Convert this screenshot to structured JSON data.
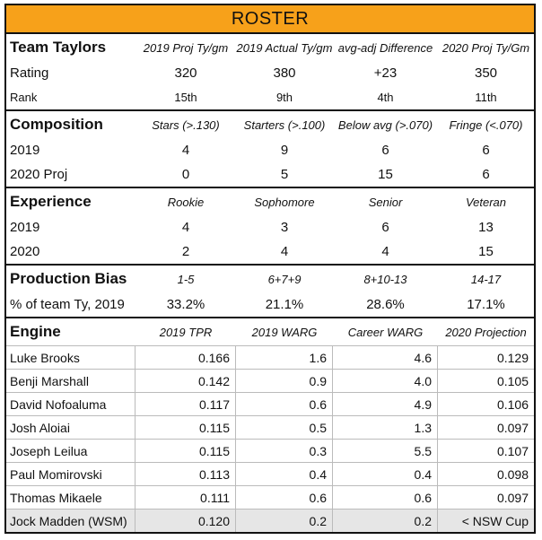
{
  "header": {
    "title": "ROSTER"
  },
  "sections": [
    {
      "title": "Team Taylors",
      "columns": [
        "2019 Proj Ty/gm",
        "2019 Actual Ty/gm",
        "avg-adj Difference",
        "2020 Proj Ty/Gm"
      ],
      "rows": [
        {
          "label": "Rating",
          "cells": [
            "320",
            "380",
            "+23",
            "350"
          ]
        },
        {
          "label": "Rank",
          "cells": [
            "15th",
            "9th",
            "4th",
            "11th"
          ]
        }
      ]
    },
    {
      "title": "Composition",
      "columns": [
        "Stars (>.130)",
        "Starters (>.100)",
        "Below avg (>.070)",
        "Fringe (<.070)"
      ],
      "rows": [
        {
          "label": "2019",
          "cells": [
            "4",
            "9",
            "6",
            "6"
          ]
        },
        {
          "label": "2020 Proj",
          "cells": [
            "0",
            "5",
            "15",
            "6"
          ]
        }
      ]
    },
    {
      "title": "Experience",
      "columns": [
        "Rookie",
        "Sophomore",
        "Senior",
        "Veteran"
      ],
      "rows": [
        {
          "label": "2019",
          "cells": [
            "4",
            "3",
            "6",
            "13"
          ]
        },
        {
          "label": "2020",
          "cells": [
            "2",
            "4",
            "4",
            "15"
          ]
        }
      ]
    },
    {
      "title": "Production Bias",
      "columns": [
        "1-5",
        "6+7+9",
        "8+10-13",
        "14-17"
      ],
      "rows": [
        {
          "label": "% of team Ty, 2019",
          "cells": [
            "33.2%",
            "21.1%",
            "28.6%",
            "17.1%"
          ]
        }
      ]
    },
    {
      "title": "Engine",
      "columns": [
        "2019 TPR",
        "2019 WARG",
        "Career WARG",
        "2020 Projection"
      ],
      "rows": [
        {
          "label": "Luke Brooks",
          "cells": [
            "0.166",
            "1.6",
            "4.6",
            "0.129"
          ]
        },
        {
          "label": "Benji Marshall",
          "cells": [
            "0.142",
            "0.9",
            "4.0",
            "0.105"
          ]
        },
        {
          "label": "David Nofoaluma",
          "cells": [
            "0.117",
            "0.6",
            "4.9",
            "0.106"
          ]
        },
        {
          "label": "Josh Aloiai",
          "cells": [
            "0.115",
            "0.5",
            "1.3",
            "0.097"
          ]
        },
        {
          "label": "Joseph Leilua",
          "cells": [
            "0.115",
            "0.3",
            "5.5",
            "0.107"
          ]
        },
        {
          "label": "Paul Momirovski",
          "cells": [
            "0.113",
            "0.4",
            "0.4",
            "0.098"
          ]
        },
        {
          "label": "Thomas Mikaele",
          "cells": [
            "0.111",
            "0.6",
            "0.6",
            "0.097"
          ]
        },
        {
          "label": "Jock Madden (WSM)",
          "cells": [
            "0.120",
            "0.2",
            "0.2",
            "< NSW Cup"
          ]
        }
      ]
    }
  ]
}
